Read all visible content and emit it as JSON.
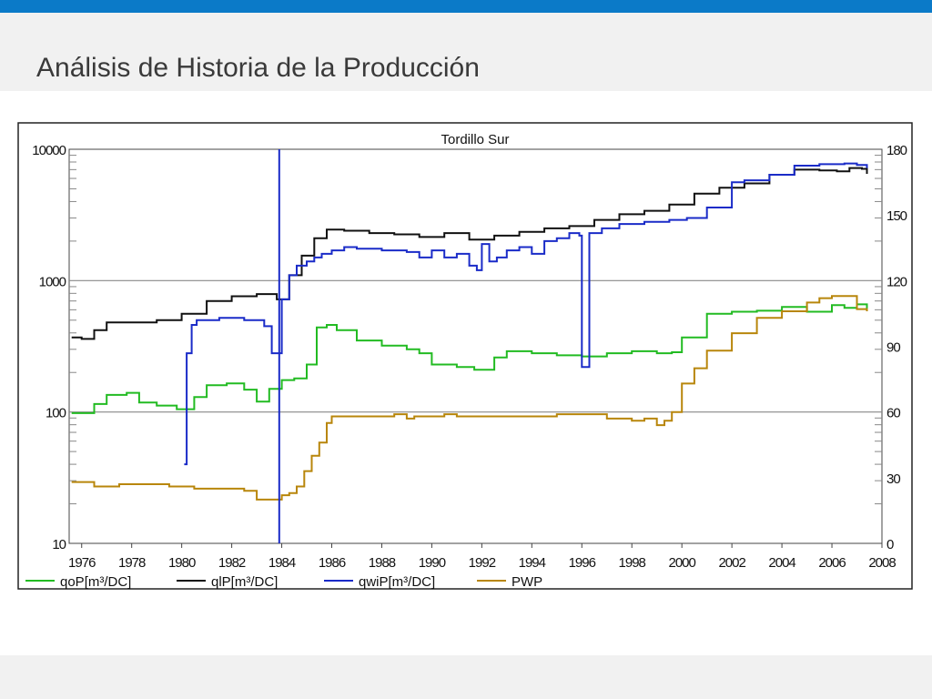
{
  "slide": {
    "title": "Análisis de Historia de la Producción"
  },
  "chart_data": {
    "type": "line",
    "title": "Tordillo Sur",
    "x_axis": {
      "range": [
        1975.5,
        2008.0
      ],
      "ticks": [
        "1976",
        "1978",
        "1980",
        "1982",
        "1984",
        "1986",
        "1988",
        "1990",
        "1992",
        "1994",
        "1996",
        "1998",
        "2000",
        "2002",
        "2004",
        "2006",
        "2008"
      ]
    },
    "y_left": {
      "scale": "log",
      "range": [
        10,
        10000
      ],
      "ticks": [
        "10",
        "100",
        "1000",
        "10000"
      ]
    },
    "y_right": {
      "range": [
        0,
        180
      ],
      "ticks": [
        "0",
        "30",
        "60",
        "90",
        "120",
        "150",
        "180"
      ]
    },
    "grid": {
      "horizontal": true,
      "vertical": false
    },
    "legend_position": "bottom-left",
    "marker_year": 1983.9,
    "series": [
      {
        "name": "qoP[m³/DC]",
        "axis": "left",
        "color": "#22bb22",
        "x": [
          1975.6,
          1976.5,
          1977,
          1977.8,
          1978.3,
          1979,
          1979.8,
          1980.5,
          1981,
          1981.8,
          1982.5,
          1983,
          1983.5,
          1984,
          1984.5,
          1985,
          1985.4,
          1985.8,
          1986.2,
          1987,
          1988,
          1989,
          1989.5,
          1990,
          1991,
          1991.7,
          1992.5,
          1993,
          1994,
          1995,
          1996,
          1997,
          1998,
          1999,
          1999.6,
          2000,
          2001,
          2002,
          2003,
          2004,
          2005,
          2006,
          2006.5,
          2007,
          2007.4
        ],
        "y": [
          98,
          115,
          135,
          140,
          118,
          112,
          105,
          130,
          160,
          165,
          148,
          120,
          150,
          175,
          180,
          230,
          440,
          460,
          420,
          350,
          320,
          300,
          280,
          230,
          220,
          210,
          260,
          290,
          280,
          270,
          265,
          280,
          290,
          280,
          285,
          370,
          560,
          580,
          590,
          630,
          580,
          650,
          620,
          660,
          610
        ]
      },
      {
        "name": "qlP[m³/DC]",
        "axis": "left",
        "color": "#111111",
        "x": [
          1975.6,
          1976,
          1976.5,
          1977,
          1978,
          1979,
          1980,
          1981,
          1982,
          1983,
          1983.8,
          1984.3,
          1984.8,
          1985.3,
          1985.8,
          1986.5,
          1987.5,
          1988.5,
          1989.5,
          1990.5,
          1991.5,
          1992.5,
          1993.5,
          1994.5,
          1995.5,
          1996.5,
          1997.5,
          1998.5,
          1999.5,
          2000.5,
          2001.5,
          2002.5,
          2003.5,
          2004.5,
          2005.5,
          2006.2,
          2006.7,
          2007.2,
          2007.4
        ],
        "y": [
          370,
          360,
          420,
          480,
          480,
          500,
          560,
          700,
          760,
          790,
          720,
          1100,
          1550,
          2100,
          2450,
          2400,
          2300,
          2250,
          2150,
          2300,
          2050,
          2200,
          2350,
          2500,
          2600,
          2900,
          3200,
          3400,
          3800,
          4600,
          5100,
          5500,
          6400,
          7000,
          6900,
          6800,
          7200,
          7100,
          6500
        ]
      },
      {
        "name": "qwiP[m³/DC]",
        "axis": "left",
        "color": "#1a2bc8",
        "x": [
          1980.1,
          1980.2,
          1980.4,
          1980.6,
          1981.5,
          1982.5,
          1983.3,
          1983.6,
          1984,
          1984.3,
          1984.6,
          1985,
          1985.3,
          1985.6,
          1986,
          1986.5,
          1987,
          1988,
          1989,
          1989.5,
          1990,
          1990.5,
          1991,
          1991.5,
          1991.8,
          1992,
          1992.3,
          1992.6,
          1993,
          1993.5,
          1994,
          1994.5,
          1995,
          1995.5,
          1995.9,
          1996,
          1996.3,
          1996.8,
          1997.5,
          1998.5,
          1999.5,
          2000.2,
          2001,
          2002,
          2002.5,
          2003.5,
          2004.5,
          2005.5,
          2006.5,
          2007,
          2007.4
        ],
        "y": [
          40,
          280,
          460,
          500,
          520,
          500,
          450,
          280,
          720,
          1100,
          1300,
          1400,
          1500,
          1600,
          1700,
          1800,
          1750,
          1700,
          1650,
          1500,
          1700,
          1500,
          1600,
          1300,
          1200,
          1900,
          1400,
          1500,
          1700,
          1800,
          1600,
          2000,
          2100,
          2300,
          2200,
          220,
          2300,
          2500,
          2700,
          2800,
          2900,
          3000,
          3600,
          5600,
          5800,
          6400,
          7500,
          7700,
          7800,
          7600,
          7200
        ]
      },
      {
        "name": "PWP",
        "axis": "right",
        "color": "#b8860b",
        "x": [
          1975.6,
          1976.5,
          1977.5,
          1978.5,
          1979.5,
          1980,
          1980.5,
          1981,
          1981.5,
          1982,
          1982.5,
          1983,
          1983.5,
          1984,
          1984.3,
          1984.6,
          1984.9,
          1985.2,
          1985.5,
          1985.8,
          1986,
          1987,
          1988,
          1988.5,
          1989,
          1989.3,
          1989.6,
          1990,
          1990.5,
          1991,
          1992,
          1993,
          1994,
          1995,
          1996,
          1997,
          1998,
          1998.5,
          1999,
          1999.3,
          1999.6,
          2000,
          2000.5,
          2001,
          2002,
          2003,
          2004,
          2005,
          2005.5,
          2006,
          2007,
          2007.4
        ],
        "y": [
          28,
          26,
          27,
          27,
          26,
          26,
          25,
          25,
          25,
          25,
          24,
          20,
          20,
          22,
          23,
          26,
          33,
          40,
          46,
          55,
          58,
          58,
          58,
          59,
          57,
          58,
          58,
          58,
          59,
          58,
          58,
          58,
          58,
          59,
          59,
          57,
          56,
          57,
          54,
          56,
          60,
          73,
          80,
          88,
          96,
          103,
          106,
          110,
          112,
          113,
          107,
          106
        ]
      }
    ]
  }
}
